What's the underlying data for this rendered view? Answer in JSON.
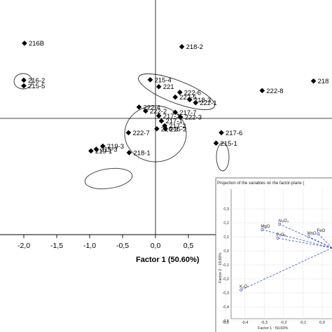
{
  "chart_data": [
    {
      "type": "scatter",
      "xlabel": "Factor 1 (50.60%)",
      "x_ticks": [
        "-2,0",
        "-1,5",
        "-1,0",
        "-0,5",
        "0,0",
        "0,5"
      ],
      "x_tick_values": [
        -2.0,
        -1.5,
        -1.0,
        -0.5,
        0.0,
        0.5
      ],
      "points": [
        {
          "label": "216B",
          "x": -1.99,
          "y": 1.73
        },
        {
          "label": "218-2",
          "x": 0.4,
          "y": 1.65
        },
        {
          "label": "216-2",
          "x": -2.0,
          "y": 0.88
        },
        {
          "label": "215-5",
          "x": -2.0,
          "y": 0.75
        },
        {
          "label": "218",
          "x": 2.4,
          "y": 0.86
        },
        {
          "label": "215-4",
          "x": -0.08,
          "y": 0.89
        },
        {
          "label": "221",
          "x": 0.05,
          "y": 0.73
        },
        {
          "label": "222-6",
          "x": 0.37,
          "y": 0.6
        },
        {
          "label": "222-5",
          "x": 0.3,
          "y": 0.49
        },
        {
          "label": "222-8",
          "x": 1.62,
          "y": 0.64
        },
        {
          "label": "218-3",
          "x": 0.52,
          "y": 0.43
        },
        {
          "label": "222-1",
          "x": 0.61,
          "y": 0.36
        },
        {
          "label": "222-4",
          "x": -0.25,
          "y": 0.26
        },
        {
          "label": "222-2",
          "x": -0.15,
          "y": 0.17
        },
        {
          "label": "217-7",
          "x": 0.3,
          "y": 0.14
        },
        {
          "label": "217-3",
          "x": 0.05,
          "y": 0.06
        },
        {
          "label": "222-3",
          "x": 0.38,
          "y": 0.03
        },
        {
          "label": "217-1",
          "x": 0.09,
          "y": -0.06
        },
        {
          "label": "217-2",
          "x": 0.14,
          "y": -0.17
        },
        {
          "label": "216-3",
          "x": 0.02,
          "y": -0.24
        },
        {
          "label": "215-2",
          "x": 0.15,
          "y": -0.24
        },
        {
          "label": "222-7",
          "x": -0.41,
          "y": -0.33
        },
        {
          "label": "217-6",
          "x": 1.0,
          "y": -0.33
        },
        {
          "label": "215-1",
          "x": 0.92,
          "y": -0.57
        },
        {
          "label": "219-3",
          "x": -0.8,
          "y": -0.64
        },
        {
          "label": "215-3",
          "x": -0.9,
          "y": -0.71
        },
        {
          "label": "219-1",
          "x": -0.98,
          "y": -0.75
        },
        {
          "label": "218-1",
          "x": -0.4,
          "y": -0.79
        }
      ]
    },
    {
      "type": "scatter",
      "title": "Projection of the variables on the factor-plane (",
      "xlabel": "Factor 1 : 50,60%",
      "ylabel": "Factor 2 : 19,60%",
      "x_ticks": [
        "-0,5",
        "-0,4",
        "-0,3",
        "-0,2",
        "-0,1",
        "0,0"
      ],
      "x_tick_values": [
        -0.5,
        -0.4,
        -0.3,
        -0.2,
        -0.1,
        0.0
      ],
      "y_ticks": [
        "0,3",
        "0,2",
        "0,1",
        "0,0",
        "-0,1",
        "-0,2",
        "-0,3",
        "-0,4",
        "-0,5"
      ],
      "y_tick_values": [
        0.3,
        0.2,
        0.1,
        0.0,
        -0.1,
        -0.2,
        -0.3,
        -0.4,
        -0.5
      ],
      "points": [
        {
          "label": "Al₂O₃",
          "x": -0.22,
          "y": 0.19
        },
        {
          "label": "MgO",
          "x": -0.31,
          "y": 0.15
        },
        {
          "label": "P₂O₅",
          "x": -0.23,
          "y": 0.09
        },
        {
          "label": "MnO",
          "x": -0.07,
          "y": 0.1
        },
        {
          "label": "FeO",
          "x": -0.02,
          "y": 0.12
        },
        {
          "label": "K₂O",
          "x": -0.42,
          "y": -0.28
        }
      ]
    }
  ]
}
